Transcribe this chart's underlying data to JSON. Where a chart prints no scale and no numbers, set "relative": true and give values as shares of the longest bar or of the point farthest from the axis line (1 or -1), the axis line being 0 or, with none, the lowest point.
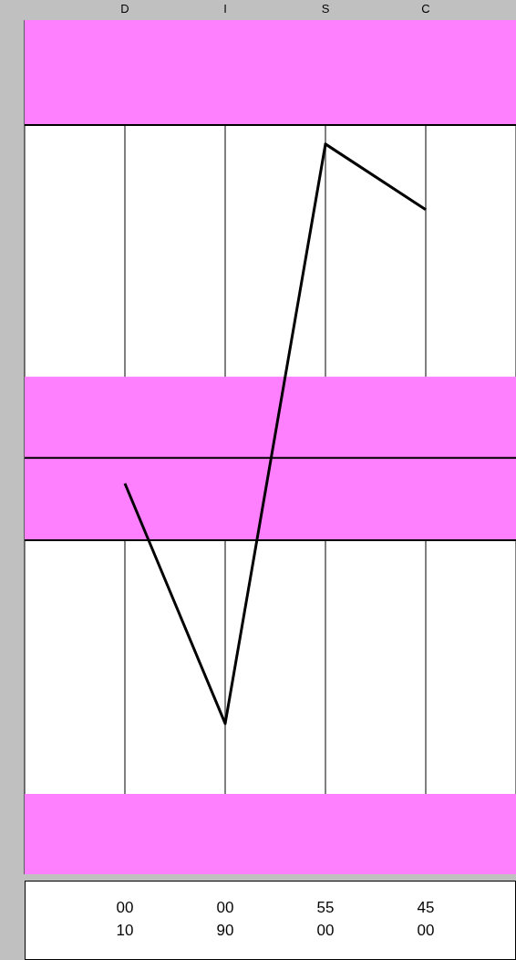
{
  "chart_data": {
    "type": "line",
    "relative": true,
    "categories": [
      "D",
      "I",
      "S",
      "C"
    ],
    "series": [
      {
        "color": "#000000",
        "values": [
          -0.081,
          -0.846,
          1,
          0.791
        ]
      }
    ],
    "bands": [
      {
        "axis": "y",
        "from": 1.061,
        "to": 1.395,
        "color": "#ff80ff"
      },
      {
        "axis": "y",
        "from": -0.262,
        "to": 0.259,
        "color": "#ff80ff"
      },
      {
        "axis": "y",
        "from": -1.326,
        "to": -1.07,
        "color": "#ff80ff"
      }
    ],
    "ref_lines": [
      {
        "axis": "y",
        "value": 1.061,
        "color": "#000000"
      },
      {
        "axis": "y",
        "value": 0,
        "color": "#000000"
      },
      {
        "axis": "y",
        "value": -0.262,
        "color": "#000000"
      }
    ],
    "grid": "x",
    "annotations": [
      "00",
      "00",
      "55",
      "45",
      "10",
      "90",
      "00",
      "00"
    ]
  }
}
